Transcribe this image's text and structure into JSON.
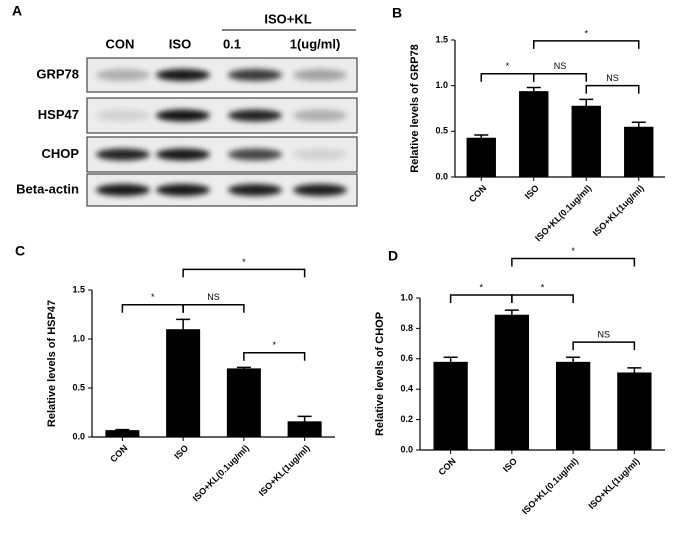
{
  "blot": {
    "label": "A",
    "group": "ISO+KL",
    "lanes": [
      "CON",
      "ISO",
      "0.1",
      "1(ug/ml)"
    ],
    "rows": [
      "GRP78",
      "HSP47",
      "CHOP",
      "Beta-actin"
    ]
  },
  "chart_data": [
    {
      "type": "bar",
      "label": "B",
      "y_label": "Relative levels of GRP78",
      "categories": [
        "CON",
        "ISO",
        "ISO+KL(0.1ug/ml)",
        "ISO+KL(1ug/ml)"
      ],
      "values": [
        0.43,
        0.94,
        0.78,
        0.55
      ],
      "errors": [
        0.03,
        0.04,
        0.07,
        0.05
      ],
      "color": "#000000",
      "ylim": [
        0,
        1.5
      ],
      "yticks": [
        {
          "value": 0,
          "label": "0.0"
        },
        0.5,
        {
          "value": 1,
          "label": "1.0"
        },
        1.5
      ],
      "brackets": [
        {
          "text": "*",
          "from": 0,
          "to": 1
        },
        {
          "text": "NS",
          "from": 1,
          "to": 2
        },
        {
          "text": "NS",
          "from": 2,
          "to": 3
        },
        {
          "text": "*",
          "from": 1,
          "to": 3
        }
      ]
    },
    {
      "type": "bar",
      "label": "C",
      "y_label": "Relative levels of HSP47",
      "categories": [
        "CON",
        "ISO",
        "ISO+KL(0.1ug/ml)",
        "ISO+KL(1ug/ml)"
      ],
      "values": [
        0.07,
        1.1,
        0.7,
        0.16
      ],
      "errors": [
        0.005,
        0.1,
        0.01,
        0.05
      ],
      "color": "#000000",
      "ylim": [
        0,
        1.5
      ],
      "yticks": [
        {
          "value": 0,
          "label": "0.0"
        },
        0.5,
        {
          "value": 1,
          "label": "1.0"
        },
        1.5
      ],
      "brackets": [
        {
          "text": "*",
          "from": 0,
          "to": 1
        },
        {
          "text": "NS",
          "from": 1,
          "to": 2
        },
        {
          "text": "*",
          "from": 2,
          "to": 3
        },
        {
          "text": "*",
          "from": 1,
          "to": 3
        }
      ]
    },
    {
      "type": "bar",
      "label": "D",
      "y_label": "Relative levels of CHOP",
      "categories": [
        "CON",
        "ISO",
        "ISO+KL(0.1ug/ml)",
        "ISO+KL(1ug/ml)"
      ],
      "values": [
        0.58,
        0.89,
        0.58,
        0.51
      ],
      "errors": [
        0.03,
        0.03,
        0.03,
        0.03
      ],
      "color": "#000000",
      "ylim": [
        0,
        1.0
      ],
      "yticks": [
        {
          "value": 0,
          "label": "0.0"
        },
        0.2,
        0.4,
        0.6,
        0.8,
        {
          "value": 1,
          "label": "1.0"
        }
      ],
      "brackets": [
        {
          "text": "*",
          "from": 0,
          "to": 1
        },
        {
          "text": "*",
          "from": 1,
          "to": 2
        },
        {
          "text": "NS",
          "from": 2,
          "to": 3
        },
        {
          "text": "*",
          "from": 1,
          "to": 3
        }
      ]
    }
  ]
}
